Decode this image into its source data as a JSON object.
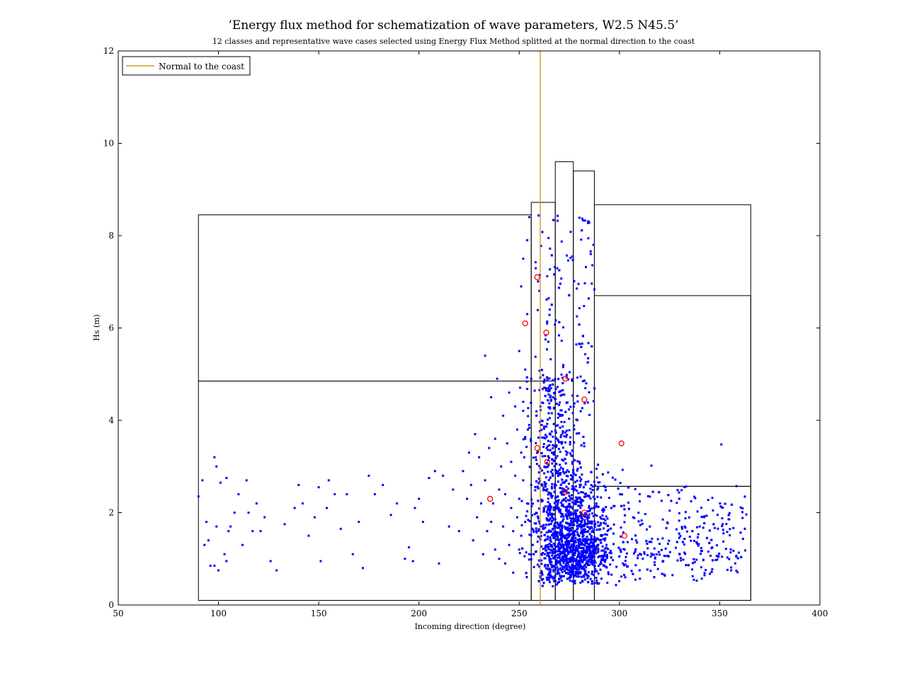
{
  "chart_data": {
    "type": "scatter",
    "title": "’Energy flux method for schematization of wave parameters, W2.5 N45.5’",
    "subtitle": "12 classes and representative wave cases selected using Energy Flux Method splitted at the normal direction to the coast",
    "xlabel": "Incoming direction (degree)",
    "ylabel": "Hs (m)",
    "xlim": [
      50,
      400
    ],
    "ylim": [
      0,
      12
    ],
    "xticks": [
      50,
      100,
      150,
      200,
      250,
      300,
      350,
      400
    ],
    "yticks": [
      0,
      2,
      4,
      6,
      8,
      10,
      12
    ],
    "grid": false,
    "legend": {
      "placement": "top-left",
      "entries": [
        "Normal to the coast"
      ]
    },
    "normal_direction": 260.5,
    "colors": {
      "points": "#0000ff",
      "representative": "#ff0000",
      "normal_line": "#cc8800",
      "boxes": "#000000"
    },
    "class_boxes": [
      {
        "x": [
          90,
          256
        ],
        "y": [
          0.1,
          4.85
        ]
      },
      {
        "x": [
          90,
          256
        ],
        "y": [
          4.85,
          8.45
        ]
      },
      {
        "x": [
          256,
          268
        ],
        "y": [
          0.1,
          4.85
        ]
      },
      {
        "x": [
          256,
          268
        ],
        "y": [
          4.85,
          8.72
        ]
      },
      {
        "x": [
          268,
          277
        ],
        "y": [
          0.1,
          9.6
        ]
      },
      {
        "x": [
          277,
          287.5
        ],
        "y": [
          0.1,
          9.4
        ]
      },
      {
        "x": [
          287.5,
          365.5
        ],
        "y": [
          0.1,
          8.67
        ]
      },
      {
        "x": [
          287.5,
          365.5
        ],
        "y": [
          0.1,
          2.57
        ]
      },
      {
        "x": [
          287.5,
          365.5
        ],
        "y": [
          2.57,
          6.7
        ]
      }
    ],
    "representative_cases": [
      {
        "x": 235.5,
        "y": 2.3
      },
      {
        "x": 253,
        "y": 6.1
      },
      {
        "x": 259,
        "y": 7.1
      },
      {
        "x": 259,
        "y": 3.4
      },
      {
        "x": 263.5,
        "y": 5.9
      },
      {
        "x": 264,
        "y": 3.1
      },
      {
        "x": 273,
        "y": 4.9
      },
      {
        "x": 273,
        "y": 2.45
      },
      {
        "x": 282.5,
        "y": 4.45
      },
      {
        "x": 282.5,
        "y": 2.0
      },
      {
        "x": 301,
        "y": 3.5
      },
      {
        "x": 302.5,
        "y": 1.5
      }
    ],
    "points": [
      [
        90,
        2.35
      ],
      [
        92,
        2.7
      ],
      [
        93,
        1.3
      ],
      [
        94,
        1.8
      ],
      [
        95,
        1.4
      ],
      [
        96,
        0.85
      ],
      [
        98,
        3.2
      ],
      [
        98,
        0.85
      ],
      [
        99,
        3.0
      ],
      [
        99,
        1.7
      ],
      [
        100,
        0.75
      ],
      [
        101,
        2.65
      ],
      [
        103,
        1.1
      ],
      [
        104,
        0.95
      ],
      [
        104,
        2.75
      ],
      [
        105,
        1.6
      ],
      [
        106,
        1.7
      ],
      [
        108,
        2.0
      ],
      [
        110,
        2.4
      ],
      [
        112,
        1.3
      ],
      [
        114,
        2.7
      ],
      [
        115,
        2.0
      ],
      [
        117,
        1.6
      ],
      [
        119,
        2.2
      ],
      [
        121,
        1.6
      ],
      [
        123,
        1.9
      ],
      [
        126,
        0.95
      ],
      [
        129,
        0.75
      ],
      [
        133,
        1.75
      ],
      [
        138,
        2.1
      ],
      [
        140,
        2.6
      ],
      [
        142,
        2.2
      ],
      [
        145,
        1.5
      ],
      [
        148,
        1.9
      ],
      [
        150,
        2.55
      ],
      [
        151,
        0.95
      ],
      [
        154,
        2.1
      ],
      [
        155,
        2.7
      ],
      [
        158,
        2.4
      ],
      [
        161,
        1.65
      ],
      [
        164,
        2.4
      ],
      [
        167,
        1.1
      ],
      [
        170,
        1.8
      ],
      [
        172,
        0.8
      ],
      [
        175,
        2.8
      ],
      [
        178,
        2.4
      ],
      [
        182,
        2.6
      ],
      [
        186,
        1.95
      ],
      [
        189,
        2.2
      ],
      [
        193,
        1.0
      ],
      [
        195,
        1.25
      ],
      [
        197,
        0.95
      ],
      [
        198,
        2.1
      ],
      [
        200,
        2.3
      ],
      [
        202,
        1.8
      ],
      [
        205,
        2.75
      ],
      [
        208,
        2.9
      ],
      [
        210,
        0.9
      ],
      [
        212,
        2.8
      ],
      [
        215,
        1.7
      ],
      [
        217,
        2.5
      ],
      [
        220,
        1.6
      ],
      [
        222,
        2.9
      ],
      [
        224,
        2.3
      ],
      [
        225,
        3.3
      ],
      [
        226,
        2.6
      ],
      [
        227,
        1.4
      ],
      [
        228,
        3.7
      ],
      [
        229,
        1.9
      ],
      [
        230,
        3.2
      ],
      [
        231,
        2.2
      ],
      [
        232,
        1.1
      ],
      [
        233,
        5.4
      ],
      [
        233,
        2.7
      ],
      [
        234,
        1.6
      ],
      [
        235,
        3.4
      ],
      [
        236,
        1.8
      ],
      [
        236,
        4.5
      ],
      [
        237,
        2.2
      ],
      [
        238,
        1.2
      ],
      [
        238,
        3.6
      ],
      [
        239,
        4.9
      ],
      [
        240,
        2.5
      ],
      [
        240,
        1.0
      ],
      [
        241,
        3.0
      ],
      [
        242,
        1.7
      ],
      [
        242,
        4.1
      ],
      [
        243,
        2.4
      ],
      [
        243,
        0.9
      ],
      [
        244,
        3.5
      ],
      [
        245,
        1.3
      ],
      [
        245,
        4.6
      ],
      [
        246,
        2.1
      ],
      [
        246,
        3.1
      ],
      [
        247,
        1.6
      ],
      [
        247,
        0.7
      ],
      [
        248,
        2.8
      ],
      [
        248,
        4.3
      ],
      [
        249,
        1.9
      ],
      [
        249,
        3.8
      ],
      [
        250,
        2.3
      ],
      [
        250,
        1.2
      ],
      [
        250,
        5.5
      ],
      [
        251,
        3.3
      ],
      [
        251,
        6.9
      ],
      [
        251,
        1.5
      ],
      [
        252,
        2.7
      ],
      [
        252,
        4.4
      ],
      [
        252,
        7.5
      ],
      [
        253,
        3.6
      ],
      [
        253,
        1.8
      ],
      [
        253,
        5.1
      ],
      [
        254,
        7.9
      ],
      [
        254,
        2.2
      ],
      [
        254,
        6.3
      ],
      [
        255,
        3.9
      ],
      [
        255,
        1.1
      ],
      [
        255,
        8.4
      ],
      [
        256,
        4.9
      ],
      [
        256,
        2.6
      ]
    ]
  }
}
